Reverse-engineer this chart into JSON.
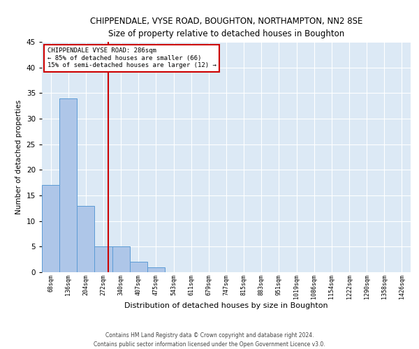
{
  "title": "CHIPPENDALE, VYSE ROAD, BOUGHTON, NORTHAMPTON, NN2 8SE",
  "subtitle": "Size of property relative to detached houses in Boughton",
  "xlabel": "Distribution of detached houses by size in Boughton",
  "ylabel": "Number of detached properties",
  "footer_line1": "Contains HM Land Registry data © Crown copyright and database right 2024.",
  "footer_line2": "Contains public sector information licensed under the Open Government Licence v3.0.",
  "categories": [
    "68sqm",
    "136sqm",
    "204sqm",
    "272sqm",
    "340sqm",
    "407sqm",
    "475sqm",
    "543sqm",
    "611sqm",
    "679sqm",
    "747sqm",
    "815sqm",
    "883sqm",
    "951sqm",
    "1019sqm",
    "1086sqm",
    "1154sqm",
    "1222sqm",
    "1290sqm",
    "1358sqm",
    "1426sqm"
  ],
  "values": [
    17,
    34,
    13,
    5,
    5,
    2,
    1,
    0,
    0,
    0,
    0,
    0,
    0,
    0,
    0,
    0,
    0,
    0,
    0,
    0,
    0
  ],
  "bar_color": "#aec6e8",
  "bar_edge_color": "#5b9bd5",
  "background_color": "#dce9f5",
  "ylim": [
    0,
    45
  ],
  "yticks": [
    0,
    5,
    10,
    15,
    20,
    25,
    30,
    35,
    40,
    45
  ],
  "property_line_x": 3.27,
  "property_line_color": "#cc0000",
  "annotation_line1": "CHIPPENDALE VYSE ROAD: 286sqm",
  "annotation_line2": "← 85% of detached houses are smaller (66)",
  "annotation_line3": "15% of semi-detached houses are larger (12) →",
  "annotation_box_color": "#cc0000",
  "annotation_bg": "#ffffff"
}
